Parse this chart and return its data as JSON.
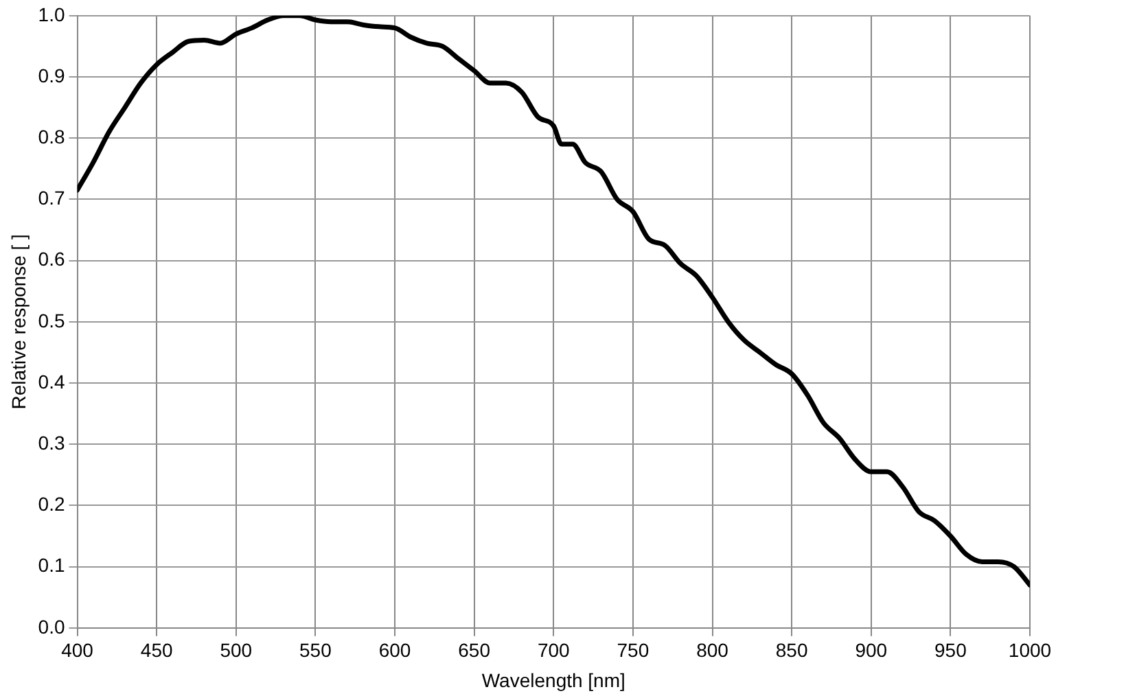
{
  "chart_data": {
    "type": "line",
    "xlabel": "Wavelength [nm]",
    "ylabel": "Relative response [ ]",
    "x": [
      400,
      410,
      420,
      430,
      440,
      450,
      460,
      470,
      480,
      490,
      500,
      510,
      520,
      530,
      540,
      550,
      560,
      570,
      580,
      590,
      600,
      610,
      620,
      630,
      640,
      650,
      660,
      670,
      680,
      690,
      700,
      705,
      712,
      720,
      730,
      740,
      750,
      760,
      770,
      780,
      790,
      800,
      810,
      820,
      830,
      840,
      850,
      860,
      870,
      880,
      890,
      900,
      910,
      920,
      930,
      940,
      950,
      960,
      970,
      980,
      990,
      1000
    ],
    "series": [
      {
        "color": "#000000",
        "values": [
          0.715,
          0.76,
          0.81,
          0.85,
          0.89,
          0.92,
          0.94,
          0.958,
          0.96,
          0.955,
          0.97,
          0.98,
          0.993,
          1.0,
          1.0,
          0.993,
          0.99,
          0.99,
          0.985,
          0.982,
          0.98,
          0.965,
          0.955,
          0.95,
          0.93,
          0.91,
          0.89,
          0.89,
          0.875,
          0.835,
          0.82,
          0.79,
          0.79,
          0.76,
          0.745,
          0.7,
          0.68,
          0.635,
          0.625,
          0.595,
          0.575,
          0.54,
          0.5,
          0.47,
          0.45,
          0.43,
          0.415,
          0.38,
          0.335,
          0.31,
          0.275,
          0.255,
          0.255,
          0.23,
          0.19,
          0.175,
          0.15,
          0.12,
          0.108,
          0.108,
          0.1,
          0.07
        ]
      }
    ],
    "xlim": [
      400,
      1000
    ],
    "xticks": [
      400,
      450,
      500,
      550,
      600,
      650,
      700,
      750,
      800,
      850,
      900,
      950,
      1000
    ],
    "ylim": [
      0,
      1
    ],
    "yticks": [
      {
        "value": 0,
        "label": "0.0"
      },
      {
        "value": 0.1,
        "label": "0.1"
      },
      {
        "value": 0.2,
        "label": "0.2"
      },
      {
        "value": 0.3,
        "label": "0.3"
      },
      {
        "value": 0.4,
        "label": "0.4"
      },
      {
        "value": 0.5,
        "label": "0.5"
      },
      {
        "value": 0.6,
        "label": "0.6"
      },
      {
        "value": 0.7,
        "label": "0.7"
      },
      {
        "value": 0.8,
        "label": "0.8"
      },
      {
        "value": 0.9,
        "label": "0.9"
      },
      {
        "value": 1,
        "label": "1.0"
      }
    ],
    "grid": true,
    "legend": false,
    "marker": "none",
    "line_style": "solid"
  }
}
